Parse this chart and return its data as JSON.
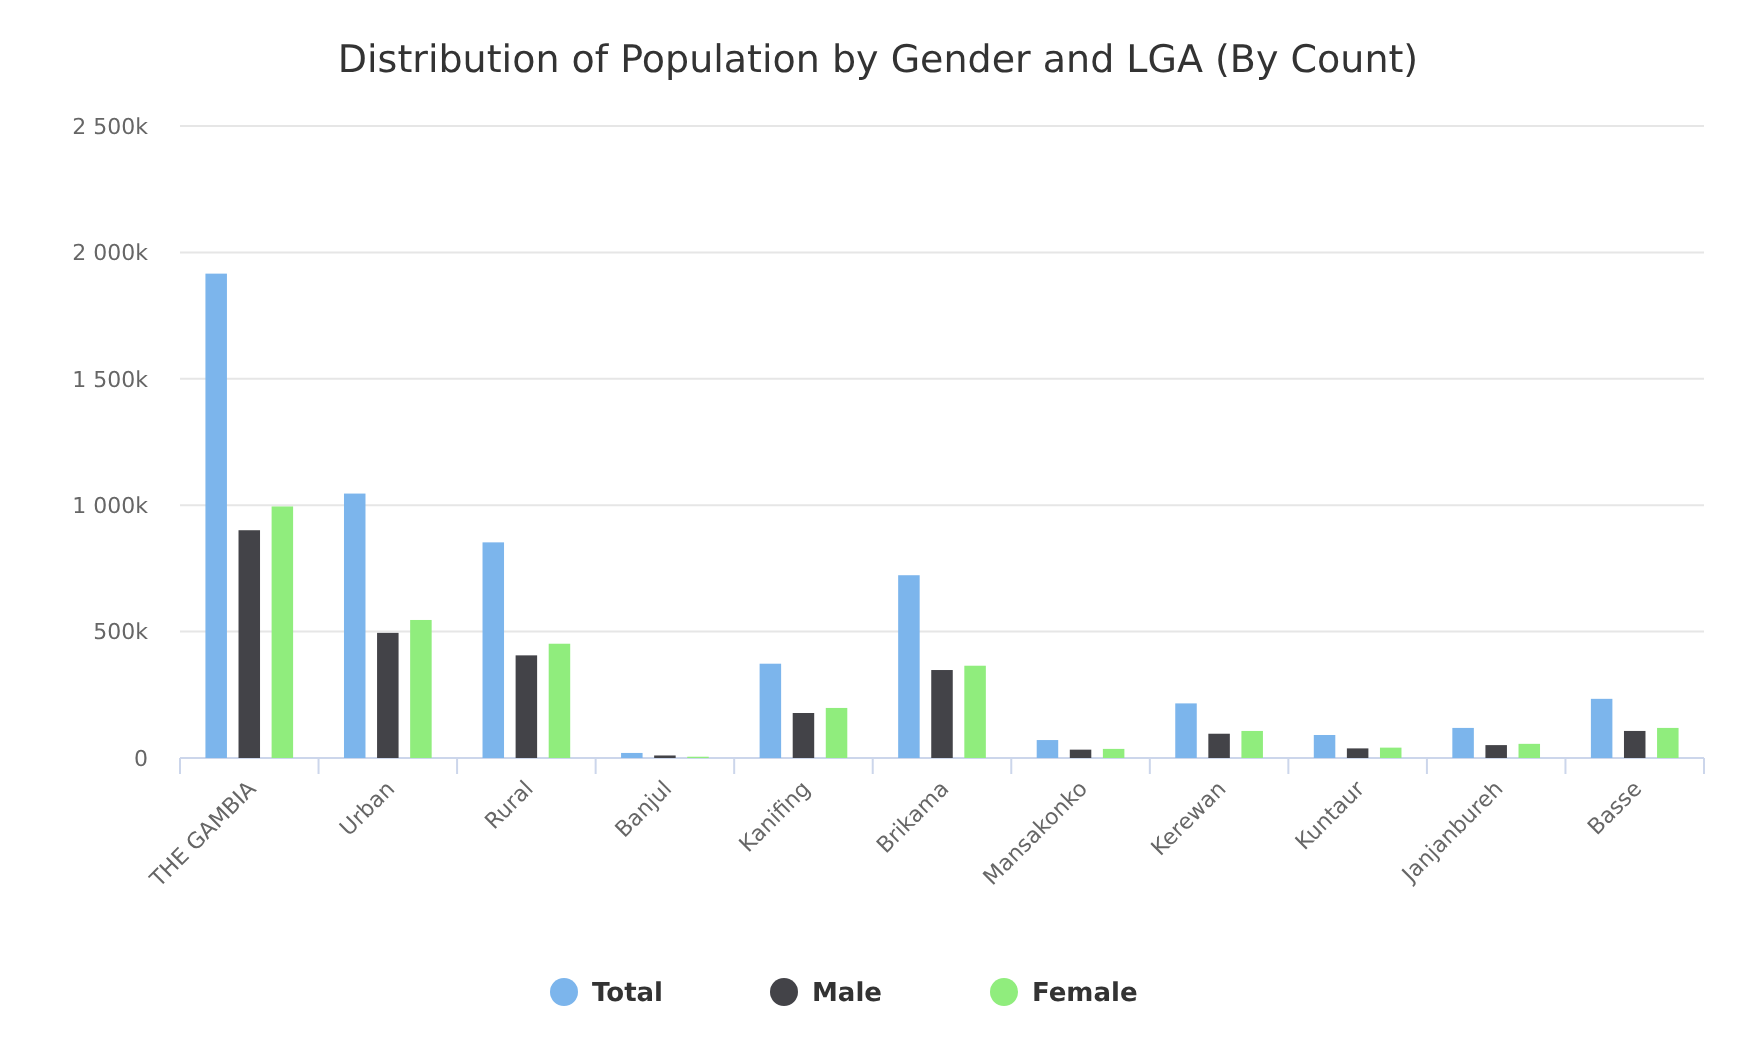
{
  "chart_data": {
    "type": "bar",
    "title": "Distribution of Population by Gender and LGA (By Count)",
    "categories": [
      "THE GAMBIA",
      "Urban",
      "Rural",
      "Banjul",
      "Kanifing",
      "Brikama",
      "Mansakonko",
      "Kerewan",
      "Kuntaur",
      "Janjanbureh",
      "Basse"
    ],
    "series": [
      {
        "name": "Total",
        "color": "#7cb5ec",
        "values": [
          1916000,
          1046000,
          853000,
          20000,
          373000,
          723000,
          71000,
          216000,
          91000,
          119000,
          234000
        ]
      },
      {
        "name": "Male",
        "color": "#434348",
        "values": [
          901000,
          495000,
          406000,
          10000,
          178000,
          348000,
          33000,
          96000,
          38000,
          51000,
          107000
        ]
      },
      {
        "name": "Female",
        "color": "#90ed7d",
        "values": [
          995000,
          546000,
          452000,
          5000,
          198000,
          365000,
          36000,
          107000,
          41000,
          56000,
          119000
        ]
      }
    ],
    "ylim": [
      0,
      2500000
    ],
    "yticks": [
      0,
      {
        "value": 500000,
        "label": "500k"
      },
      {
        "value": 1000000,
        "label": "1 000k"
      },
      {
        "value": 1500000,
        "label": "1 500k"
      },
      {
        "value": 2000000,
        "label": "2 000k"
      },
      {
        "value": 2500000,
        "label": "2 500k"
      }
    ],
    "grid": "y",
    "legend": "bottom"
  }
}
